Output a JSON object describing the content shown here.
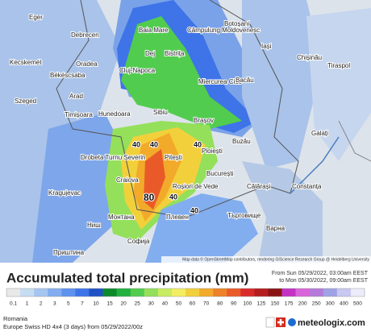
{
  "map": {
    "cities": [
      "Eger",
      "Debrecen",
      "Kecskemét",
      "Békéscsaba",
      "Szeged",
      "Oradea",
      "Arad",
      "Timișoara",
      "Baia Mare",
      "Dej",
      "Bistrița",
      "Cluj-Napoca",
      "Câmpulung Moldovenesc",
      "Botoșani",
      "Iași",
      "Chișinău",
      "Tiraspol",
      "Miercurea Ciuc",
      "Bacău",
      "Hunedoara",
      "Sibiu",
      "Brașov",
      "Buzău",
      "Galați",
      "Drobeta Turnu Severin",
      "Craiova",
      "Pitești",
      "Ploiești",
      "București",
      "Roșiori de Vede",
      "Călărași",
      "Constanța",
      "Kragujevac",
      "Ниш",
      "Монтана",
      "Плевен",
      "Търговище",
      "Варна",
      "Софија",
      "Приштина"
    ],
    "annotations": [
      "80",
      "40",
      "40",
      "40",
      "40",
      "40"
    ],
    "attribution": "Map data © OpenStreetMap contributors, rendering GIScience Research Group @ Heidelberg University"
  },
  "legend": {
    "title": "Accumulated total precipitation (mm)",
    "period_from": "From Sun 05/29/2022, 03:00am EEST",
    "period_to": "to Mon 05/30/2022, 09:00am EEST",
    "scale_labels": [
      "0.1",
      "1",
      "2",
      "3",
      "5",
      "7",
      "10",
      "15",
      "20",
      "25",
      "30",
      "40",
      "50",
      "60",
      "70",
      "80",
      "90",
      "100",
      "125",
      "150",
      "175",
      "200",
      "250",
      "300",
      "400",
      "500"
    ],
    "scale_colors": [
      "#e8e8e8",
      "#c6dcf2",
      "#a4c6f0",
      "#82aef0",
      "#5e92ee",
      "#3e74e8",
      "#2052c4",
      "#0c8a2c",
      "#22b040",
      "#52cc4e",
      "#94e05a",
      "#c8ec62",
      "#f2ee62",
      "#f2d03c",
      "#f2aa2a",
      "#ee8228",
      "#ea5a28",
      "#d82a2a",
      "#b41e1e",
      "#8a1414",
      "#c432c4",
      "#da64da",
      "#b47ada",
      "#a0a2e6",
      "#c8c8f0",
      "#ececfa"
    ]
  },
  "footer": {
    "region": "Romania",
    "model": "Europe Swiss HD 4x4 (3 days) from 05/29/2022/00z",
    "brand": "meteologix.com"
  }
}
